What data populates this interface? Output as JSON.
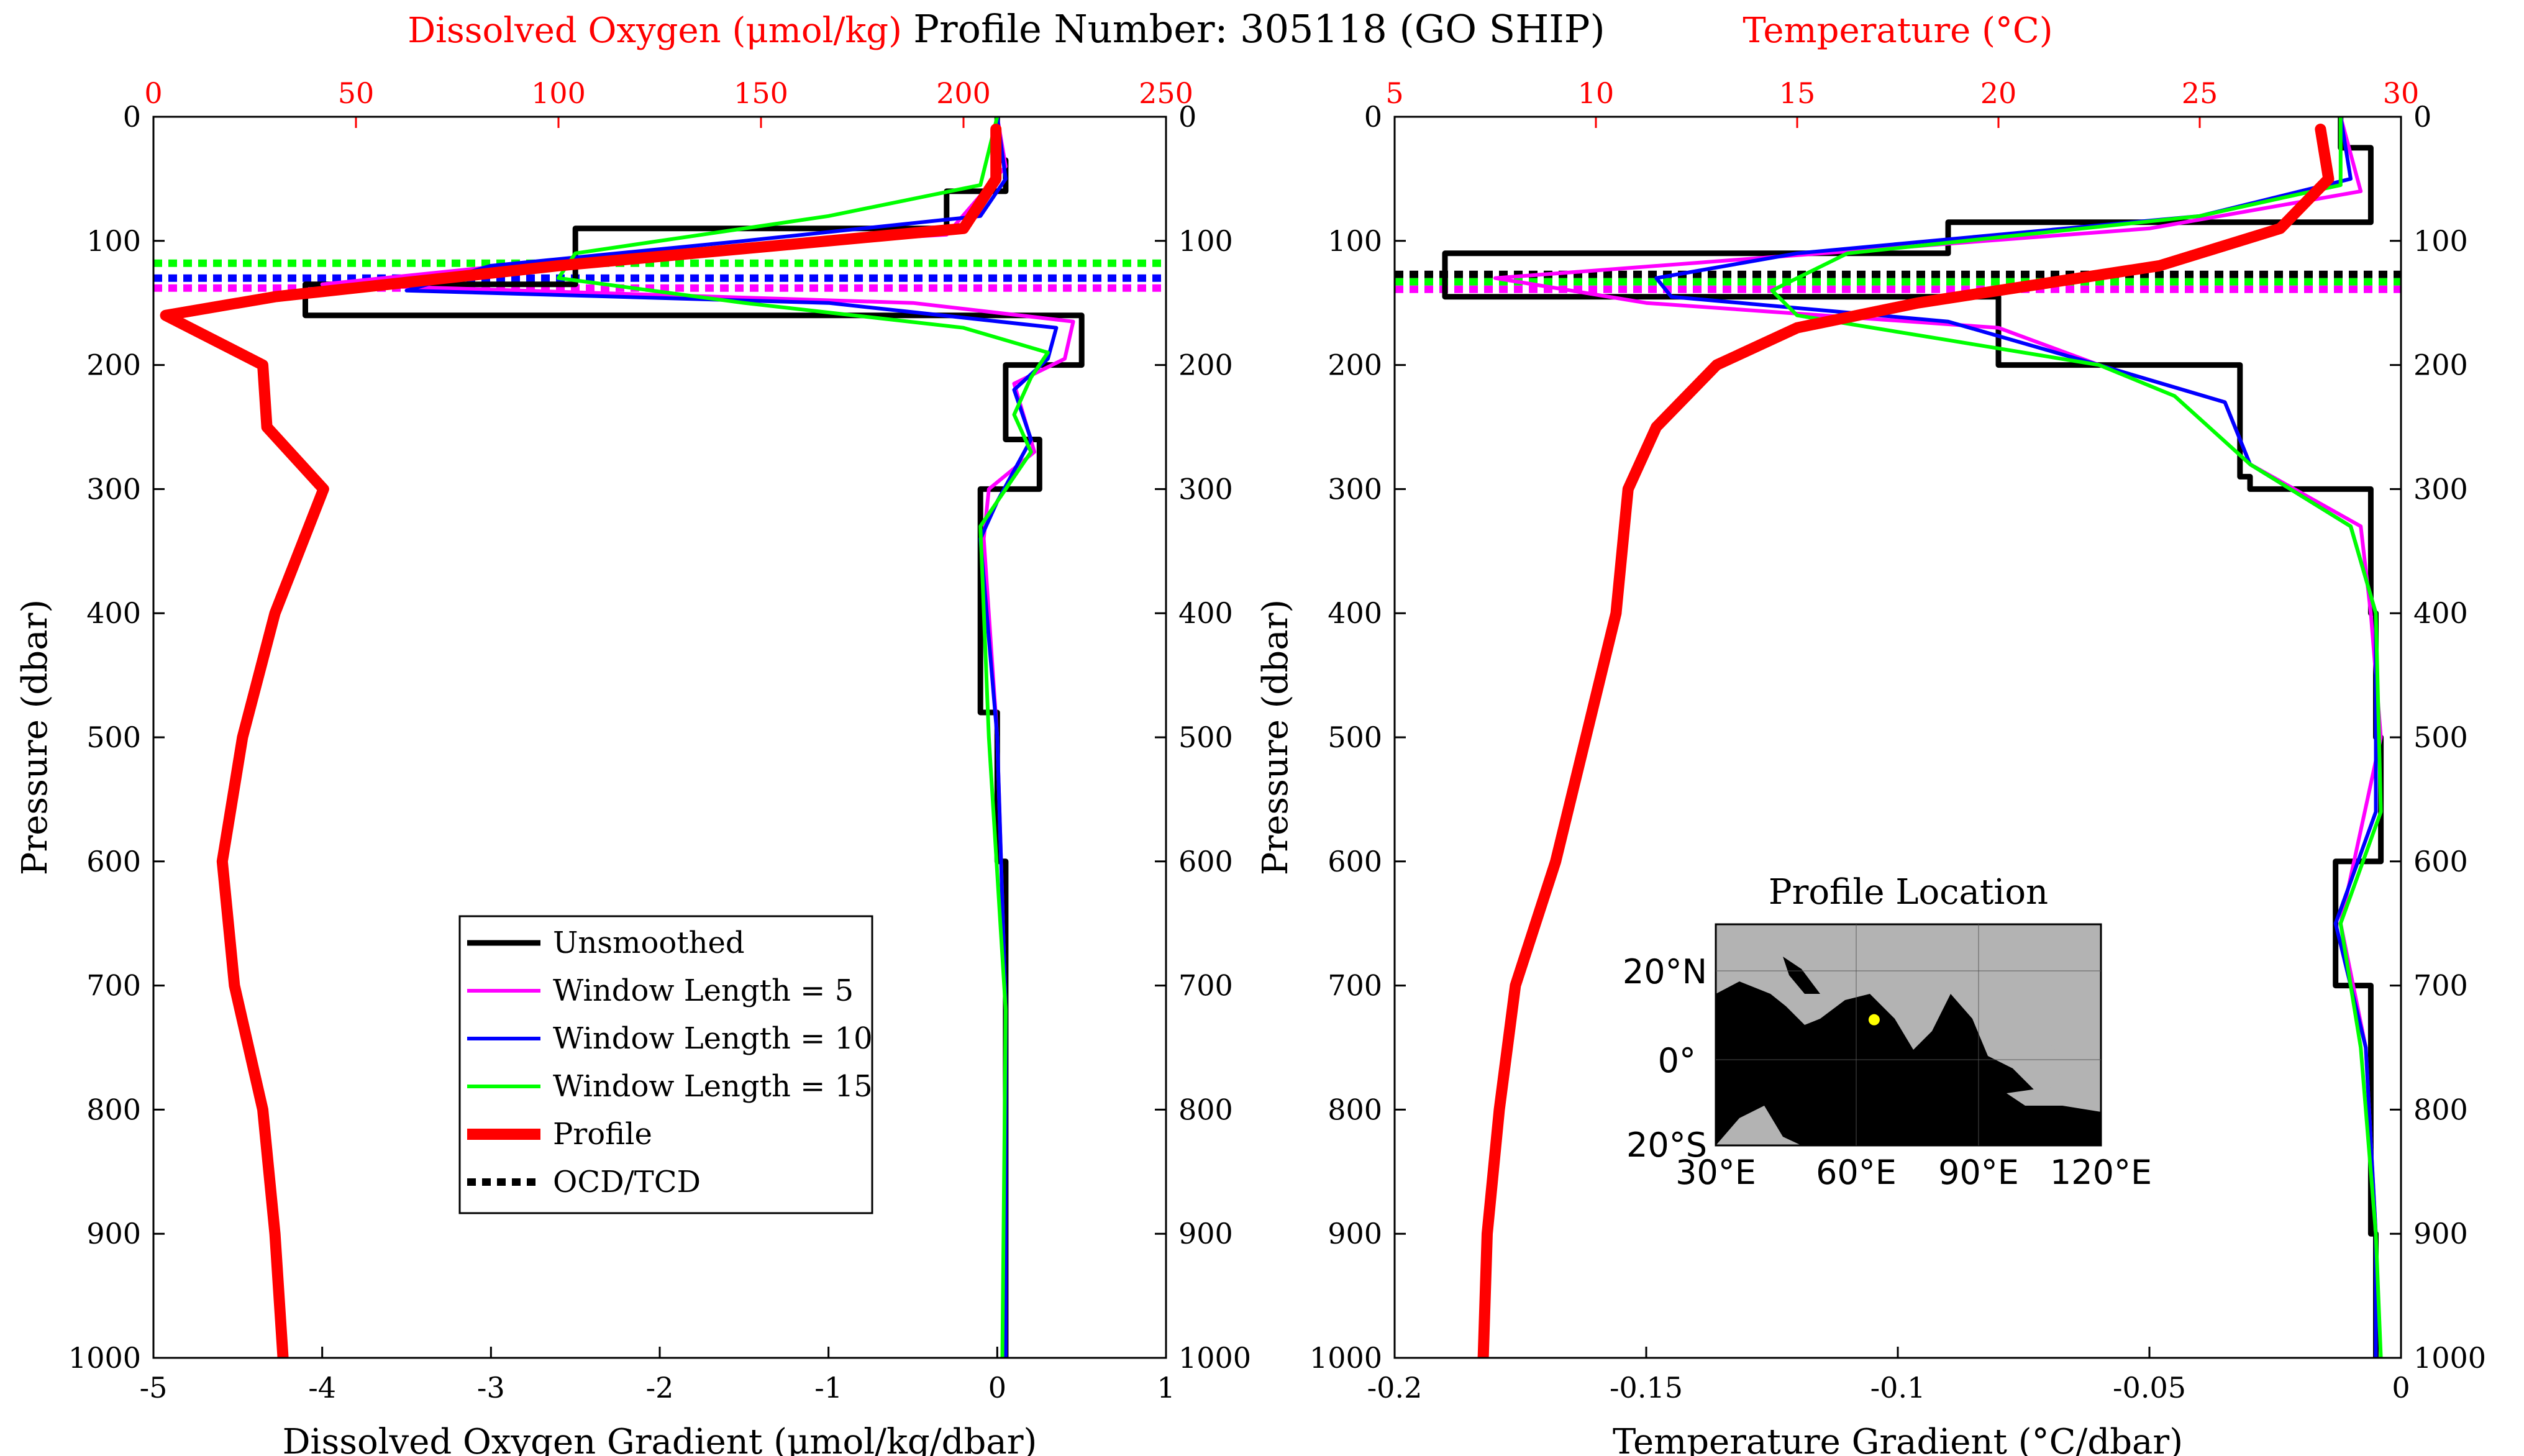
{
  "title": "Profile Number: 305118 (GO SHIP)",
  "colors": {
    "unsmoothed": "#000000",
    "w5": "#ff00ff",
    "w10": "#0000ff",
    "w15": "#00ff00",
    "profile": "#ff0000",
    "land": "#b3b3b3",
    "ocean": "#000000",
    "location": "#ffff00"
  },
  "chart_data": [
    {
      "type": "line",
      "title": "",
      "xlabel": "Dissolved Oxygen Gradient (μmol/kg/dbar)",
      "x2label": "Dissolved Oxygen (μmol/kg)",
      "ylabel": "Pressure (dbar)",
      "xlim": [
        -5,
        1
      ],
      "x2lim": [
        0,
        250
      ],
      "ylim": [
        1000,
        0
      ],
      "xticks": [
        "-5",
        "-4",
        "-3",
        "-2",
        "-1",
        "0",
        "1"
      ],
      "x2ticks": [
        "0",
        "50",
        "100",
        "150",
        "200",
        "250"
      ],
      "yticks": [
        "0",
        "100",
        "200",
        "300",
        "400",
        "500",
        "600",
        "700",
        "800",
        "900",
        "1000"
      ],
      "legend": {
        "placement": "center",
        "entries": [
          "Unsmoothed",
          "Window Length = 5",
          "Window Length = 10",
          "Window Length = 15",
          "Profile",
          "OCD/TCD"
        ]
      },
      "series": [
        {
          "name": "Unsmoothed",
          "axis": "bottom",
          "x": [
            0,
            0,
            0.05,
            0.05,
            -0.3,
            -0.3,
            -2.5,
            -2.5,
            -4.1,
            -4.1,
            0.5,
            0.5,
            0.05,
            0.05,
            0.25,
            0.25,
            -0.1,
            -0.1,
            0.0,
            0.0,
            0.05,
            0.05,
            0.05,
            0.05
          ],
          "y": [
            0,
            35,
            35,
            60,
            60,
            90,
            90,
            135,
            135,
            160,
            160,
            200,
            200,
            260,
            260,
            300,
            300,
            480,
            480,
            600,
            600,
            720,
            720,
            1000
          ]
        },
        {
          "name": "Window Length = 5",
          "axis": "bottom",
          "x": [
            0,
            0.05,
            -0.3,
            -2.2,
            -4.0,
            -0.5,
            0.45,
            0.4,
            0.1,
            0.22,
            -0.05,
            -0.08,
            0.0,
            0.05,
            0.05
          ],
          "y": [
            0,
            40,
            95,
            110,
            135,
            150,
            165,
            195,
            215,
            270,
            300,
            340,
            500,
            720,
            1000
          ]
        },
        {
          "name": "Window Length = 10",
          "axis": "bottom",
          "x": [
            0,
            0.05,
            -0.1,
            -1.5,
            -3.0,
            -3.5,
            -1.0,
            0.35,
            0.3,
            0.1,
            0.2,
            0.0,
            -0.1,
            0.0,
            0.05,
            0.05
          ],
          "y": [
            0,
            50,
            80,
            100,
            120,
            140,
            150,
            170,
            195,
            220,
            260,
            310,
            340,
            500,
            720,
            1000
          ]
        },
        {
          "name": "Window Length = 15",
          "axis": "bottom",
          "x": [
            0,
            -0.1,
            -1.0,
            -2.5,
            -2.6,
            -1.5,
            -0.2,
            0.3,
            0.2,
            0.1,
            0.2,
            0.05,
            -0.1,
            -0.05,
            0.05,
            0.03
          ],
          "y": [
            0,
            55,
            80,
            110,
            130,
            150,
            170,
            190,
            210,
            240,
            270,
            300,
            330,
            500,
            720,
            1000
          ]
        },
        {
          "name": "Profile",
          "axis": "top",
          "x": [
            208,
            208,
            200,
            100,
            30,
            3,
            27,
            28,
            42,
            30,
            22,
            17,
            20,
            27,
            30,
            32
          ],
          "y": [
            10,
            50,
            90,
            120,
            145,
            160,
            200,
            250,
            300,
            400,
            500,
            600,
            700,
            800,
            900,
            1000
          ]
        }
      ],
      "reference_lines": [
        {
          "name": "OCD/TCD",
          "color": "#00ff00",
          "y": 118
        },
        {
          "name": "OCD/TCD",
          "color": "#0000ff",
          "y": 130
        },
        {
          "name": "OCD/TCD",
          "color": "#ff00ff",
          "y": 138
        }
      ]
    },
    {
      "type": "line",
      "title": "",
      "xlabel": "Temperature Gradient (°C/dbar)",
      "x2label": "Temperature (°C)",
      "ylabel": "Pressure (dbar)",
      "xlim": [
        -0.2,
        0
      ],
      "x2lim": [
        5,
        30
      ],
      "ylim": [
        1000,
        0
      ],
      "xticks": [
        "-0.2",
        "-0.15",
        "-0.1",
        "-0.05",
        "0"
      ],
      "x2ticks": [
        "5",
        "10",
        "15",
        "20",
        "25",
        "30"
      ],
      "yticks": [
        "0",
        "100",
        "200",
        "300",
        "400",
        "500",
        "600",
        "700",
        "800",
        "900",
        "1000"
      ],
      "series": [
        {
          "name": "Unsmoothed",
          "axis": "bottom",
          "x": [
            -0.012,
            -0.012,
            -0.006,
            -0.006,
            -0.09,
            -0.09,
            -0.19,
            -0.19,
            -0.08,
            -0.08,
            -0.032,
            -0.032,
            -0.03,
            -0.03,
            -0.006,
            -0.006,
            -0.005,
            -0.005,
            -0.004,
            -0.004,
            -0.013,
            -0.013,
            -0.006,
            -0.006,
            -0.005,
            -0.005
          ],
          "y": [
            0,
            25,
            25,
            85,
            85,
            110,
            110,
            145,
            145,
            200,
            200,
            290,
            290,
            300,
            300,
            400,
            400,
            500,
            500,
            600,
            600,
            700,
            700,
            900,
            900,
            1000
          ]
        },
        {
          "name": "Window Length = 5",
          "axis": "bottom",
          "x": [
            -0.012,
            -0.008,
            -0.05,
            -0.18,
            -0.15,
            -0.08,
            -0.06,
            -0.035,
            -0.03,
            -0.008,
            -0.006,
            -0.004,
            -0.012,
            -0.007,
            -0.005,
            -0.005
          ],
          "y": [
            0,
            60,
            90,
            130,
            150,
            170,
            200,
            230,
            280,
            330,
            400,
            500,
            650,
            750,
            900,
            1000
          ]
        },
        {
          "name": "Window Length = 10",
          "axis": "bottom",
          "x": [
            -0.012,
            -0.01,
            -0.04,
            -0.12,
            -0.148,
            -0.145,
            -0.09,
            -0.06,
            -0.035,
            -0.03,
            -0.01,
            -0.005,
            -0.005,
            -0.013,
            -0.007,
            -0.005,
            -0.005
          ],
          "y": [
            0,
            50,
            80,
            110,
            130,
            145,
            165,
            200,
            230,
            280,
            330,
            400,
            560,
            650,
            750,
            900,
            1000
          ]
        },
        {
          "name": "Window Length = 15",
          "axis": "bottom",
          "x": [
            -0.012,
            -0.012,
            -0.04,
            -0.11,
            -0.125,
            -0.12,
            -0.09,
            -0.06,
            -0.045,
            -0.03,
            -0.01,
            -0.005,
            -0.004,
            -0.012,
            -0.008,
            -0.005,
            -0.004
          ],
          "y": [
            0,
            55,
            80,
            110,
            140,
            160,
            180,
            200,
            225,
            280,
            330,
            400,
            560,
            650,
            750,
            900,
            1000
          ]
        },
        {
          "name": "Profile",
          "axis": "top",
          "x": [
            28,
            28.2,
            27,
            24,
            18,
            15,
            13,
            11.5,
            10.8,
            10.5,
            9,
            8,
            7.6,
            7.3,
            7.2
          ],
          "y": [
            10,
            50,
            90,
            120,
            150,
            170,
            200,
            250,
            300,
            400,
            600,
            700,
            800,
            900,
            1000
          ]
        }
      ],
      "reference_lines": [
        {
          "name": "OCD/TCD",
          "color": "#000000",
          "y": 127
        },
        {
          "name": "OCD/TCD",
          "color": "#00ff00",
          "y": 133
        },
        {
          "name": "OCD/TCD",
          "color": "#ff00ff",
          "y": 139
        }
      ],
      "inset": {
        "title": "Profile Location",
        "lat_ticks": [
          "20°N",
          "0°",
          "20°S"
        ],
        "lon_ticks": [
          "30°E",
          "60°E",
          "90°E",
          "120°E"
        ],
        "location": {
          "lon": 67,
          "lat": 9
        }
      }
    }
  ]
}
